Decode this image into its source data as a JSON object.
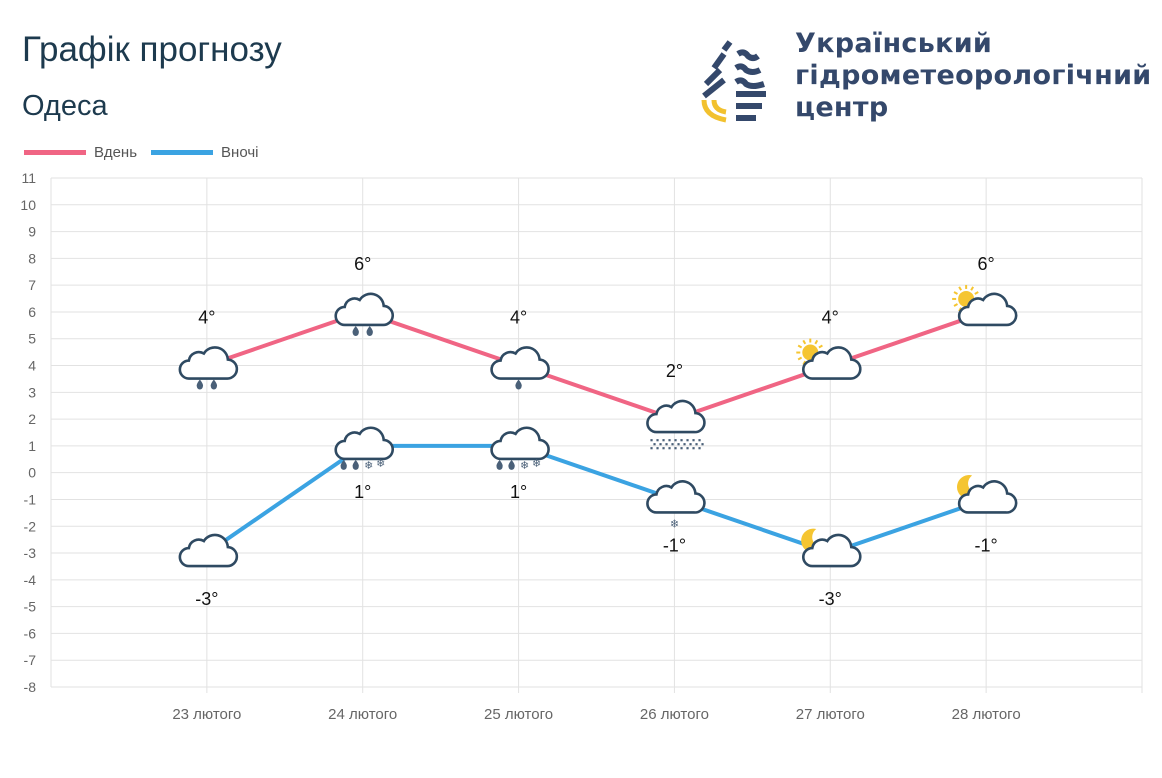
{
  "header": {
    "title": "Графік прогнозу",
    "city": "Одеса"
  },
  "logo": {
    "text_lines": [
      "Український",
      "гідрометеорологічний",
      "центр"
    ],
    "colors": {
      "blue": "#34486b",
      "yellow": "#f2c12e"
    }
  },
  "chart_data": {
    "type": "line",
    "categories": [
      "23 лютого",
      "24 лютого",
      "25 лютого",
      "26 лютого",
      "27 лютого",
      "28 лютого"
    ],
    "ylim": [
      -8,
      11
    ],
    "yticks": [
      11,
      10,
      9,
      8,
      7,
      6,
      5,
      4,
      3,
      2,
      1,
      0,
      -1,
      -2,
      -3,
      -4,
      -5,
      -6,
      -7,
      -8
    ],
    "grid": true,
    "legend": "top-left",
    "series": [
      {
        "name": "Вдень",
        "color": "#f06584",
        "values": [
          4,
          6,
          4,
          2,
          4,
          6
        ],
        "labels": [
          "4°",
          "6°",
          "4°",
          "2°",
          "4°",
          "6°"
        ],
        "icons": [
          "cloud-rain-2",
          "cloud-rain-2",
          "cloud-rain-1",
          "cloud-snow-fine",
          "sun-cloud",
          "sun-cloud"
        ]
      },
      {
        "name": "Вночі",
        "color": "#3ba3e2",
        "values": [
          -3,
          1,
          1,
          -1,
          -3,
          -1
        ],
        "labels": [
          "-3°",
          "1°",
          "1°",
          "-1°",
          "-3°",
          "-1°"
        ],
        "icons": [
          "cloud",
          "cloud-rain-snow",
          "cloud-rain-snow",
          "cloud-snow",
          "moon-cloud",
          "moon-cloud"
        ]
      }
    ]
  }
}
